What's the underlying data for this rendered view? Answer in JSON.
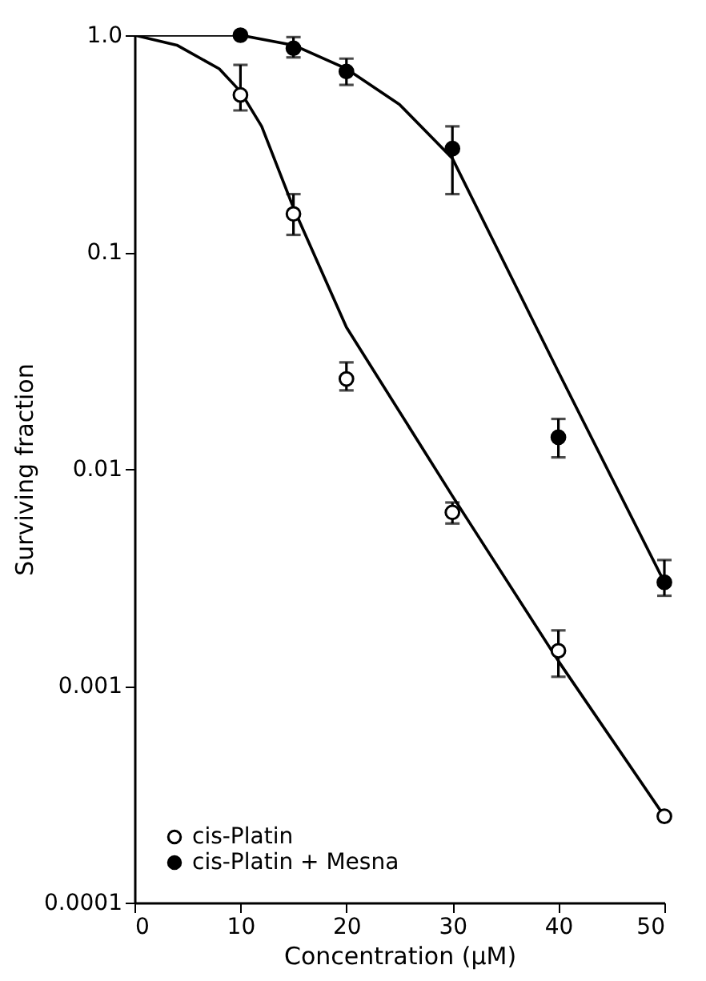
{
  "chart_data": {
    "type": "scatter",
    "xlabel": "Concentration (μM)",
    "ylabel": "Surviving fraction",
    "xlim": [
      0,
      50
    ],
    "xticks": [
      0,
      10,
      20,
      30,
      40,
      50
    ],
    "ylim": [
      0.0001,
      1
    ],
    "yticks": [
      {
        "value": 1,
        "label": "1.0"
      },
      0.1,
      0.01,
      0.001,
      0.0001
    ],
    "log": "y",
    "grid": false,
    "legend": "bottom left",
    "marker": "circle",
    "series": [
      {
        "name": "cis-Platin",
        "color": "#000000",
        "x": [
          10,
          15,
          20,
          30,
          40,
          50
        ],
        "values": [
          0.53,
          0.15,
          0.026,
          0.0063,
          0.00145,
          0.00025
        ],
        "errors": [
          [
            0.45,
            0.73
          ],
          [
            0.12,
            0.185
          ],
          [
            0.023,
            0.031
          ],
          [
            0.0056,
            0.007
          ],
          [
            0.0011,
            0.0018
          ],
          null
        ]
      },
      {
        "name": "cis-Platin + Mesna",
        "color": "#000000",
        "x": [
          10,
          15,
          20,
          30,
          40,
          50
        ],
        "values": [
          1.0,
          0.87,
          0.68,
          0.3,
          0.014,
          0.003
        ],
        "errors": [
          null,
          [
            0.79,
            0.98
          ],
          [
            0.59,
            0.78
          ],
          [
            0.185,
            0.38
          ],
          [
            0.0113,
            0.017
          ],
          [
            0.0026,
            0.0038
          ]
        ]
      },
      {
        "type": "line",
        "color": "#000000",
        "line_style": "solid",
        "marker": "none",
        "x": [
          0,
          4,
          8,
          10,
          12,
          15,
          20,
          30,
          40,
          50
        ],
        "values": [
          1,
          0.9,
          0.7,
          0.55,
          0.38,
          0.16,
          0.045,
          0.0075,
          0.0013,
          0.00025
        ]
      },
      {
        "type": "line",
        "color": "#000000",
        "line_style": "solid",
        "marker": "none",
        "x": [
          0,
          10,
          15,
          20,
          25,
          30,
          40,
          50
        ],
        "values": [
          1,
          1.0,
          0.9,
          0.7,
          0.48,
          0.27,
          0.028,
          0.003
        ]
      }
    ]
  }
}
